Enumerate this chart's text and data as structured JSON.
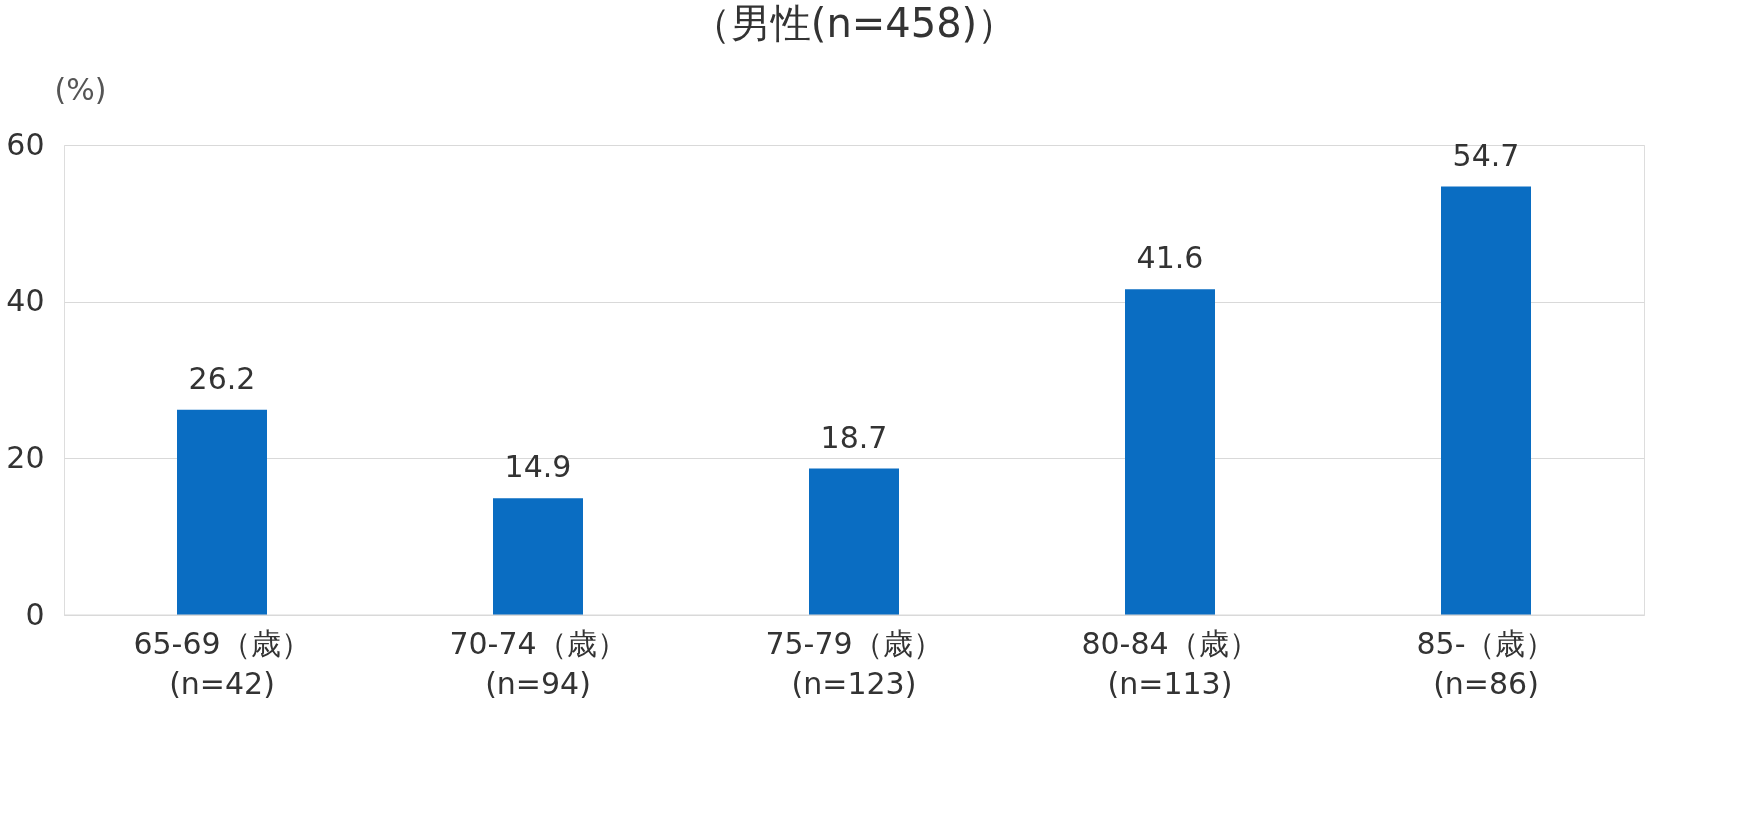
{
  "chart_data": {
    "type": "bar",
    "title": "（男性(n=458)）",
    "ylabel": "(%)",
    "categories": [
      "65-69（歳）\n(n=42)",
      "70-74（歳）\n(n=94)",
      "75-79（歳）\n(n=123)",
      "80-84（歳）\n(n=113)",
      "85-（歳）\n(n=86)"
    ],
    "values": [
      26.2,
      14.9,
      18.7,
      41.6,
      54.7
    ],
    "color": "#0a6dc2",
    "ylim": [
      0,
      60
    ],
    "yticks": [
      0,
      20,
      40,
      60
    ],
    "grid": "y",
    "data_labels": true
  }
}
